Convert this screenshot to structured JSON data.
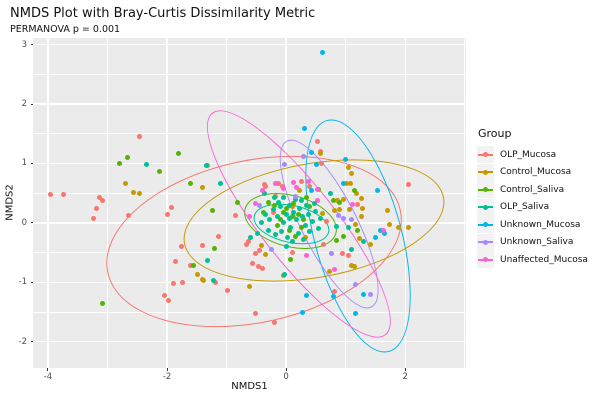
{
  "title": "NMDS Plot with Bray-Curtis Dissimilarity Metric",
  "subtitle": "PERMANOVA p = 0.001",
  "chart_data": {
    "type": "scatter",
    "title": "NMDS Plot with Bray-Curtis Dissimilarity Metric",
    "subtitle": "PERMANOVA p = 0.001",
    "xlabel": "NMDS1",
    "ylabel": "NMDS2",
    "xlim": [
      -4.25,
      3.02
    ],
    "ylim": [
      -2.44,
      3.11
    ],
    "x_major_ticks": [
      -4,
      -2,
      0,
      2
    ],
    "x_minor_ticks": [
      -3,
      -1,
      1,
      3
    ],
    "y_major_ticks": [
      -2,
      -1,
      0,
      1,
      2,
      3
    ],
    "y_minor_ticks": [
      -1.5,
      -0.5,
      0.5,
      1.5,
      2.5
    ],
    "grid": "major+minor white on gray panel",
    "panel_bg": "#EBEBEB",
    "grid_color": "#FFFFFF",
    "tick_label_color": "#4D4D4D",
    "legend": {
      "title": "Group",
      "position": "right",
      "key_bg": "#F2F2F2"
    },
    "series": [
      {
        "name": "OLP_Mucosa",
        "color": "#F8766D",
        "ellipse": {
          "cx": -0.55,
          "cy": -0.3,
          "rx": 2.5,
          "ry": 1.35,
          "rot": -12
        },
        "points": [
          [
            -3.95,
            0.48
          ],
          [
            -3.74,
            0.47
          ],
          [
            -3.24,
            0.07
          ],
          [
            -3.19,
            0.25
          ],
          [
            -3.13,
            0.42
          ],
          [
            -3.08,
            0.38
          ],
          [
            -2.64,
            0.12
          ],
          [
            -2.47,
            1.46
          ],
          [
            -2.0,
            0.15
          ],
          [
            -1.92,
            0.26
          ],
          [
            -1.32,
            0.97
          ],
          [
            -1.13,
            -0.22
          ],
          [
            -1.75,
            -0.39
          ],
          [
            -1.41,
            -0.38
          ],
          [
            -1.85,
            -0.65
          ],
          [
            -1.6,
            -0.71
          ],
          [
            -1.89,
            -1.02
          ],
          [
            -1.74,
            -1.0
          ],
          [
            -1.19,
            -1.01
          ],
          [
            -0.98,
            -1.13
          ],
          [
            -2.04,
            -1.22
          ],
          [
            -1.98,
            -1.31
          ],
          [
            -0.51,
            -1.53
          ],
          [
            -0.19,
            -1.67
          ],
          [
            0.53,
            1.37
          ],
          [
            0.57,
            1.2
          ],
          [
            0.59,
            1.0
          ],
          [
            2.06,
            0.65
          ],
          [
            -0.36,
            0.65
          ],
          [
            -0.12,
            0.67
          ],
          [
            0.26,
            0.69
          ],
          [
            -0.06,
            0.61
          ],
          [
            -0.35,
            0.61
          ],
          [
            0.95,
            -0.52
          ],
          [
            1.05,
            -0.54
          ],
          [
            -0.66,
            -0.37
          ],
          [
            -0.52,
            -0.51
          ],
          [
            -0.44,
            -0.47
          ],
          [
            -0.56,
            -0.68
          ],
          [
            -0.47,
            -0.74
          ],
          [
            -0.39,
            -0.76
          ],
          [
            0.63,
            -0.37
          ],
          [
            0.82,
            -1.16
          ],
          [
            1.2,
            0.31
          ],
          [
            0.67,
            0.02
          ],
          [
            -0.63,
            -0.31
          ],
          [
            -0.85,
            0.12
          ],
          [
            0.4,
            0.62
          ],
          [
            -0.22,
            0.18
          ],
          [
            0.1,
            -0.5
          ]
        ]
      },
      {
        "name": "Control_Mucosa",
        "color": "#C49A00",
        "ellipse": {
          "cx": 0.45,
          "cy": 0.05,
          "rx": 2.2,
          "ry": 0.95,
          "rot": -10
        },
        "points": [
          [
            -2.7,
            0.67
          ],
          [
            -2.56,
            0.52
          ],
          [
            -2.47,
            0.5
          ],
          [
            -1.41,
            0.59
          ],
          [
            1.05,
            0.93
          ],
          [
            1.08,
            0.67
          ],
          [
            1.02,
            0.66
          ],
          [
            1.1,
            0.83
          ],
          [
            1.18,
            0.5
          ],
          [
            0.81,
            0.21
          ],
          [
            0.61,
            0.16
          ],
          [
            0.23,
            0.55
          ],
          [
            1.28,
            0.24
          ],
          [
            1.7,
            0.21
          ],
          [
            2.06,
            -0.08
          ],
          [
            1.88,
            -0.08
          ],
          [
            1.74,
            -0.02
          ],
          [
            1.17,
            -0.03
          ],
          [
            1.24,
            -0.26
          ],
          [
            1.42,
            -0.37
          ],
          [
            1.1,
            -0.71
          ],
          [
            0.72,
            -0.82
          ],
          [
            -1.48,
            -0.86
          ],
          [
            -1.41,
            -0.95
          ],
          [
            -1.39,
            -0.97
          ],
          [
            -0.62,
            -1.07
          ],
          [
            -0.41,
            -0.38
          ],
          [
            -0.34,
            -0.53
          ],
          [
            -0.05,
            -0.88
          ],
          [
            1.14,
            -0.74
          ],
          [
            0.57,
            1.17
          ],
          [
            0.86,
            0.37
          ],
          [
            0.97,
            0.4
          ],
          [
            1.27,
            0.41
          ],
          [
            0.9,
            0.22
          ],
          [
            1.06,
            0.23
          ],
          [
            1.27,
            0.1
          ],
          [
            0.1,
            0.28
          ],
          [
            -0.18,
            0.44
          ],
          [
            0.33,
            -0.25
          ]
        ]
      },
      {
        "name": "Control_Saliva",
        "color": "#53B400",
        "ellipse": {
          "cx": 0.05,
          "cy": 0.05,
          "rx": 0.78,
          "ry": 0.42,
          "rot": 15
        },
        "points": [
          [
            -2.79,
            1.0
          ],
          [
            -2.66,
            1.1
          ],
          [
            -1.81,
            1.17
          ],
          [
            -2.13,
            0.87
          ],
          [
            -1.6,
            0.66
          ],
          [
            -1.24,
            0.21
          ],
          [
            -1.21,
            -0.43
          ],
          [
            -1.55,
            -0.72
          ],
          [
            -3.09,
            -1.36
          ],
          [
            -0.82,
            0.35
          ],
          [
            0.54,
            0.56
          ],
          [
            0.79,
            0.37
          ],
          [
            0.89,
            0.34
          ],
          [
            1.15,
            0.54
          ],
          [
            1.19,
            -0.12
          ],
          [
            0.97,
            -0.23
          ],
          [
            0.85,
            -0.3
          ],
          [
            0.07,
            -0.62
          ],
          [
            -0.1,
            0.05
          ],
          [
            0.0,
            0.25
          ],
          [
            0.1,
            0.1
          ],
          [
            0.2,
            0.15
          ],
          [
            -0.2,
            0.3
          ],
          [
            0.05,
            -0.12
          ],
          [
            0.3,
            0.05
          ],
          [
            -0.3,
            0.35
          ],
          [
            0.15,
            -0.22
          ],
          [
            0.4,
            0.28
          ],
          [
            -0.05,
            0.18
          ],
          [
            0.25,
            -0.08
          ],
          [
            0.12,
            0.32
          ],
          [
            -0.15,
            -0.05
          ],
          [
            0.35,
            0.42
          ],
          [
            -0.38,
            0.18
          ]
        ]
      },
      {
        "name": "OLP_Saliva",
        "color": "#00C094",
        "ellipse": {
          "cx": 0.07,
          "cy": 0.0,
          "rx": 0.63,
          "ry": 0.3,
          "rot": 12
        },
        "points": [
          [
            -2.34,
            0.99
          ],
          [
            -1.33,
            0.97
          ],
          [
            -1.1,
            0.66
          ],
          [
            -1.32,
            -0.63
          ],
          [
            -1.22,
            -0.97
          ],
          [
            -0.03,
            -0.86
          ],
          [
            -0.6,
            -0.25
          ],
          [
            -0.37,
            0.5
          ],
          [
            0.74,
            0.49
          ],
          [
            1.09,
            -0.44
          ],
          [
            0.84,
            -0.06
          ],
          [
            1.05,
            -0.08
          ],
          [
            1.3,
            -0.31
          ],
          [
            -0.35,
            0.15
          ],
          [
            -0.28,
            0.05
          ],
          [
            -0.22,
            0.22
          ],
          [
            -0.15,
            0.1
          ],
          [
            -0.1,
            0.28
          ],
          [
            -0.05,
            0.0
          ],
          [
            0.0,
            0.15
          ],
          [
            0.05,
            0.3
          ],
          [
            0.08,
            -0.08
          ],
          [
            0.12,
            0.18
          ],
          [
            0.18,
            0.05
          ],
          [
            0.22,
            0.25
          ],
          [
            0.28,
            0.1
          ],
          [
            0.32,
            -0.05
          ],
          [
            0.38,
            0.15
          ],
          [
            0.45,
            0.02
          ],
          [
            0.5,
            0.2
          ],
          [
            -0.3,
            -0.12
          ],
          [
            -0.18,
            -0.2
          ],
          [
            -0.08,
            -0.15
          ],
          [
            0.02,
            -0.25
          ],
          [
            0.1,
            -0.32
          ],
          [
            0.2,
            -0.18
          ],
          [
            0.3,
            -0.28
          ],
          [
            0.4,
            -0.15
          ],
          [
            -0.42,
            0.0
          ],
          [
            -0.05,
            0.42
          ],
          [
            0.15,
            0.4
          ],
          [
            0.25,
            0.38
          ],
          [
            -0.48,
            -0.18
          ],
          [
            0.55,
            -0.1
          ],
          [
            0.05,
            0.08
          ],
          [
            -0.12,
            0.35
          ],
          [
            0.35,
            0.3
          ],
          [
            0.48,
            0.32
          ],
          [
            0.0,
            -0.4
          ],
          [
            0.58,
            0.08
          ],
          [
            -0.2,
            0.42
          ]
        ]
      },
      {
        "name": "Unknown_Mucosa",
        "color": "#00B6EB",
        "ellipse": {
          "cx": 1.19,
          "cy": -0.2,
          "rx": 0.72,
          "ry": 2.0,
          "rot": -15
        },
        "points": [
          [
            0.61,
            2.87
          ],
          [
            0.31,
            1.59
          ],
          [
            0.43,
            1.18
          ],
          [
            0.51,
            0.98
          ],
          [
            1.0,
            1.07
          ],
          [
            0.97,
            0.67
          ],
          [
            1.54,
            0.54
          ],
          [
            0.43,
            0.55
          ],
          [
            1.65,
            -0.18
          ],
          [
            1.58,
            -0.12
          ],
          [
            1.5,
            -0.25
          ],
          [
            0.35,
            -1.22
          ],
          [
            0.79,
            -1.24
          ],
          [
            0.27,
            -1.5
          ],
          [
            1.3,
            -1.21
          ],
          [
            1.17,
            -1.53
          ]
        ]
      },
      {
        "name": "Unknown_Saliva",
        "color": "#A58AFF",
        "ellipse": {
          "cx": 0.7,
          "cy": 0.0,
          "rx": 1.55,
          "ry": 0.45,
          "rot": 63
        },
        "points": [
          [
            0.3,
            1.11
          ],
          [
            -0.02,
            0.98
          ],
          [
            1.09,
            0.06
          ],
          [
            0.96,
            0.08
          ],
          [
            0.88,
            0.13
          ],
          [
            0.76,
            -0.52
          ],
          [
            1.17,
            -1.03
          ],
          [
            1.42,
            -1.21
          ],
          [
            -0.45,
            0.3
          ],
          [
            0.15,
            0.45
          ],
          [
            -0.25,
            -0.45
          ]
        ]
      },
      {
        "name": "Unaffected_Mucosa",
        "color": "#FB61D7",
        "ellipse": {
          "cx": 0.2,
          "cy": 0.0,
          "rx": 2.35,
          "ry": 0.62,
          "rot": 52
        },
        "points": [
          [
            -0.52,
            0.33
          ],
          [
            -0.4,
            0.55
          ],
          [
            -0.05,
            0.58
          ],
          [
            0.17,
            0.6
          ],
          [
            0.52,
            0.57
          ],
          [
            0.37,
            0.69
          ],
          [
            -0.18,
            0.67
          ],
          [
            0.12,
            0.68
          ],
          [
            0.52,
            0.38
          ],
          [
            0.35,
            -0.54
          ],
          [
            0.81,
            -0.79
          ],
          [
            1.63,
            -0.13
          ],
          [
            1.12,
            0.31
          ],
          [
            -0.62,
            0.1
          ]
        ]
      }
    ]
  }
}
